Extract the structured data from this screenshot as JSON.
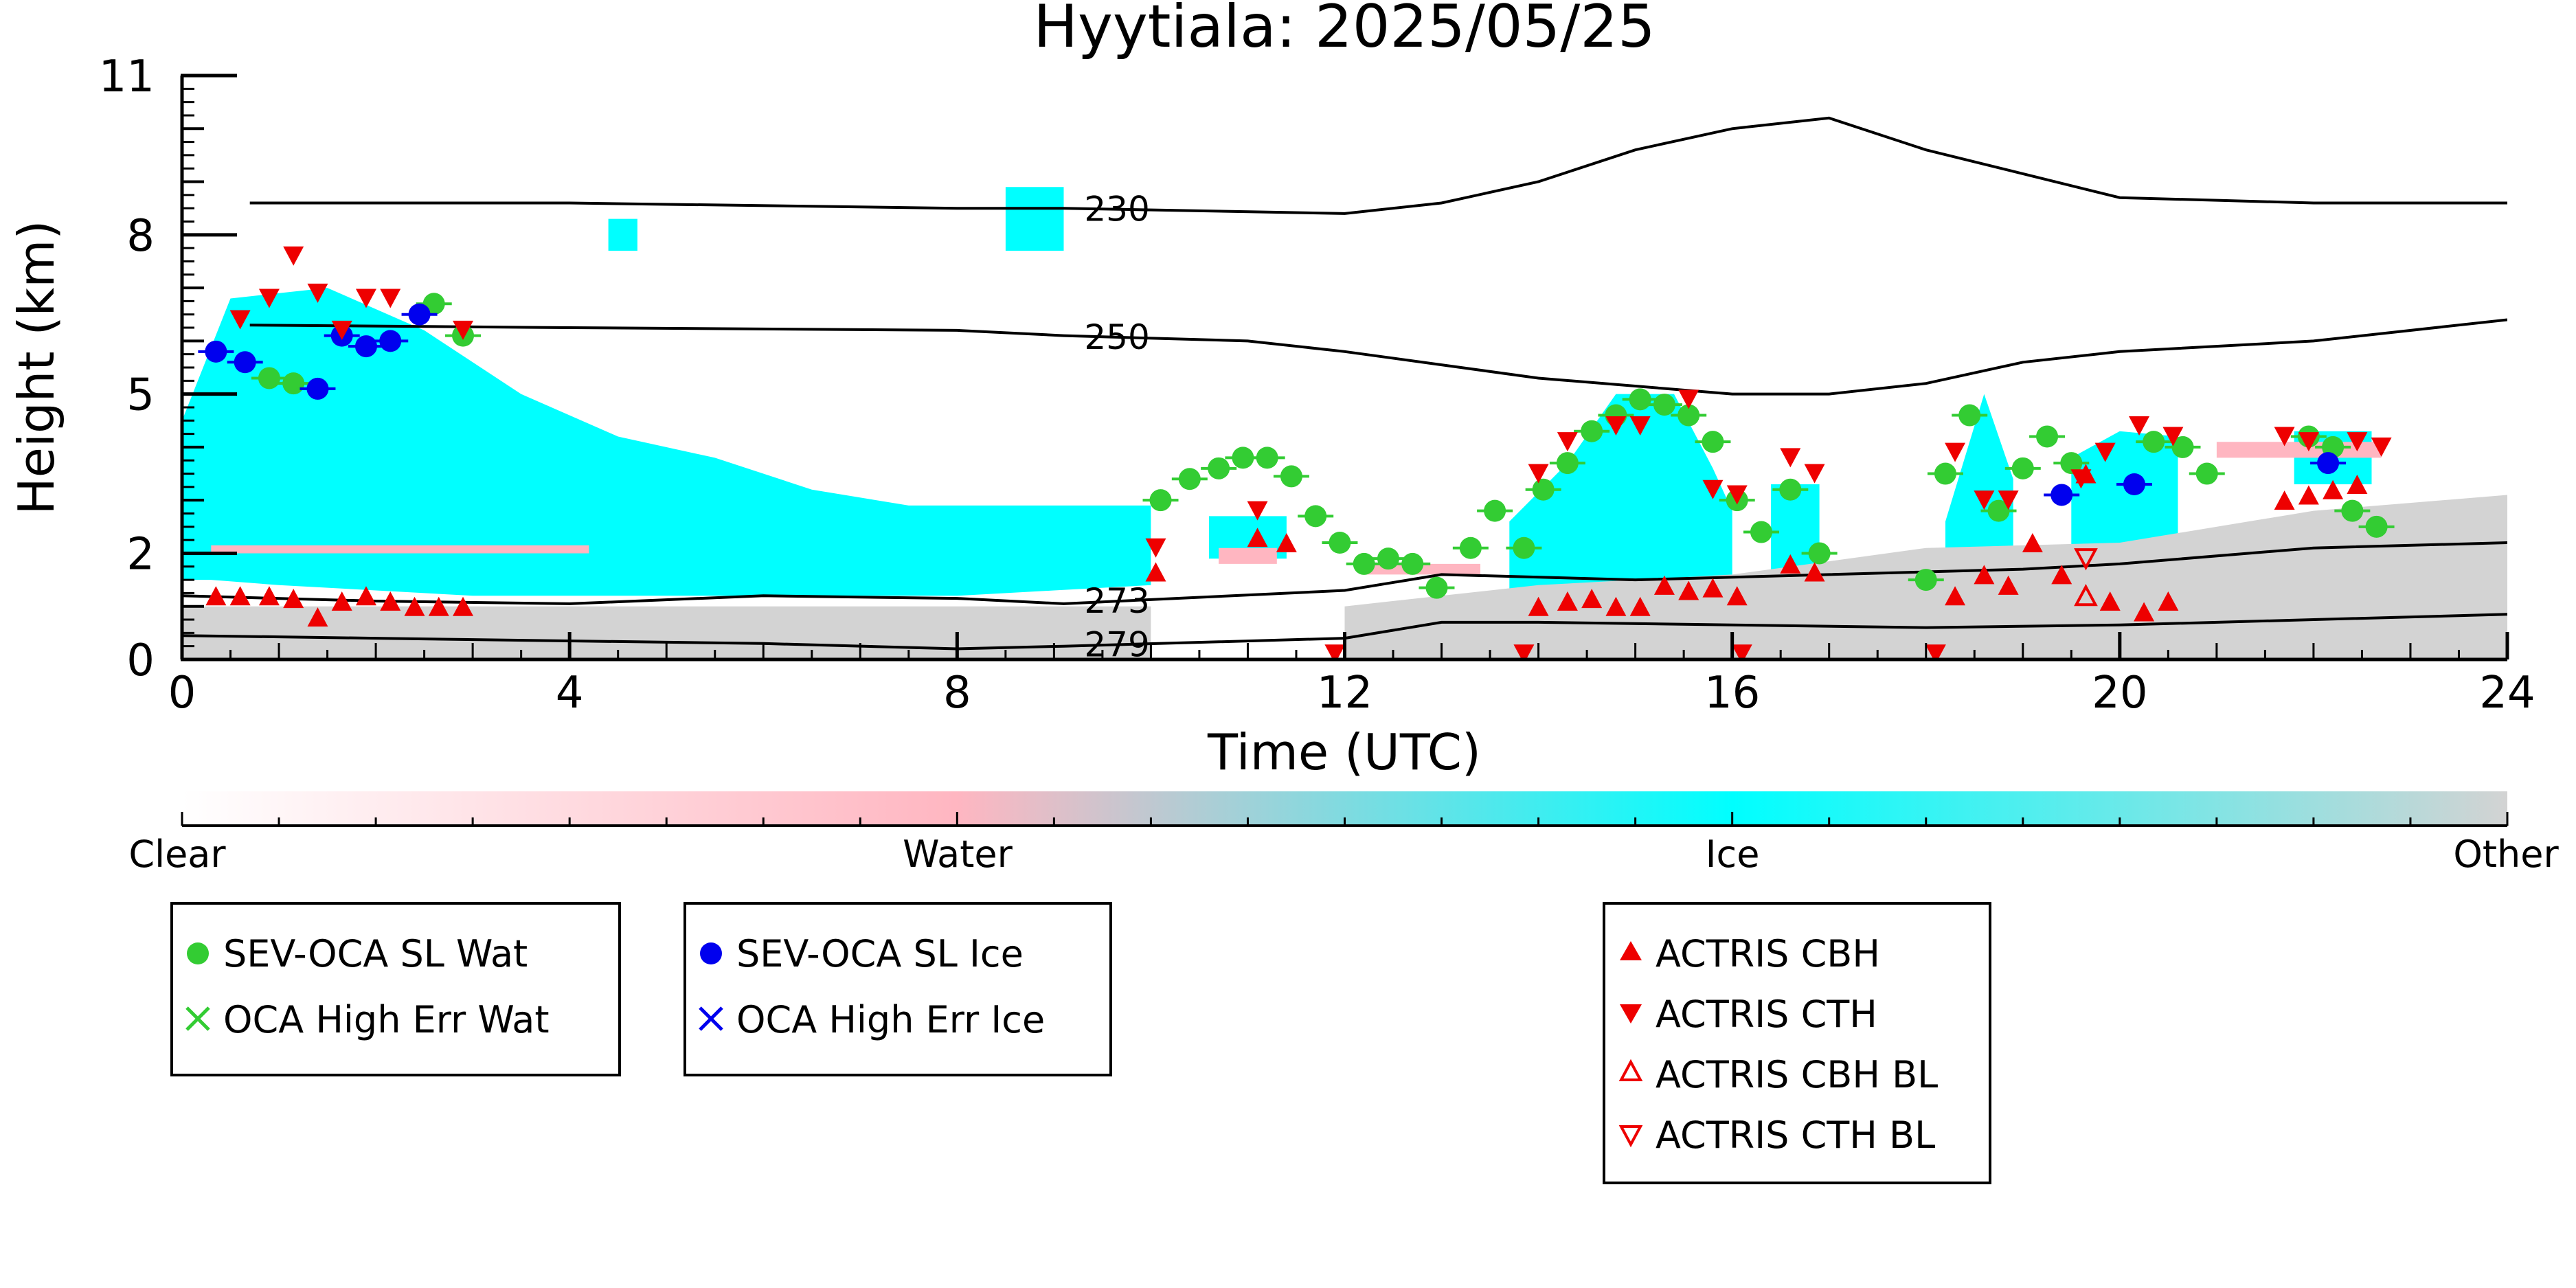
{
  "chart_data": {
    "type": "scatter",
    "title": "Hyytiala: 2025/05/25",
    "xlabel": "Time (UTC)",
    "ylabel": "Height (km)",
    "xlim": [
      0,
      24
    ],
    "ylim": [
      0,
      11
    ],
    "x_ticks": [
      0,
      4,
      8,
      12,
      16,
      20,
      24
    ],
    "y_ticks": [
      {
        "value": 0,
        "label": "0"
      },
      {
        "value": 2,
        "label": "2"
      },
      {
        "value": 5,
        "label": "5"
      },
      {
        "value": 8,
        "label": "8"
      },
      {
        "value": 11,
        "label": "11"
      }
    ],
    "colors": {
      "water": "#ffb6c1",
      "ice": "#00ffff",
      "other": "#d3d3d3",
      "green": "#33cc33",
      "blue": "#0000ee",
      "red": "#ee0000",
      "contour": "#000000"
    },
    "classification_regions": [
      {
        "class": "Ice",
        "x": [
          0.0,
          0.5,
          1.5,
          2.5,
          3.5,
          4.5,
          5.5,
          6.5,
          7.5,
          8.5,
          9.5,
          10.0,
          10.0,
          9.0,
          8.0,
          7.0,
          6.0,
          5.0,
          4.0,
          3.0,
          2.0,
          1.0,
          0.3,
          0.0
        ],
        "y": [
          4.5,
          6.8,
          7.0,
          6.2,
          5.0,
          4.2,
          3.8,
          3.2,
          2.9,
          2.9,
          2.9,
          2.9,
          1.4,
          1.3,
          1.2,
          1.2,
          1.2,
          1.2,
          1.2,
          1.2,
          1.3,
          1.4,
          1.5,
          1.5
        ]
      },
      {
        "class": "Ice",
        "x": [
          10.6,
          11.4,
          11.4,
          10.6
        ],
        "y": [
          2.7,
          2.7,
          1.9,
          1.9
        ]
      },
      {
        "class": "Ice",
        "x": [
          13.7,
          14.3,
          14.8,
          15.4,
          15.8,
          16.0,
          16.0,
          15.0,
          14.0,
          13.7
        ],
        "y": [
          2.6,
          3.7,
          5.0,
          5.0,
          3.6,
          2.8,
          1.1,
          0.8,
          0.8,
          1.2
        ]
      },
      {
        "class": "Ice",
        "x": [
          16.4,
          16.9,
          16.9,
          16.4
        ],
        "y": [
          3.3,
          3.3,
          1.5,
          1.5
        ]
      },
      {
        "class": "Ice",
        "x": [
          18.2,
          18.6,
          18.9,
          18.9,
          18.2
        ],
        "y": [
          2.6,
          5.0,
          3.4,
          1.4,
          1.4
        ]
      },
      {
        "class": "Ice",
        "x": [
          19.5,
          20.0,
          20.6,
          20.6,
          19.5
        ],
        "y": [
          3.8,
          4.3,
          4.2,
          1.1,
          1.1
        ]
      },
      {
        "class": "Ice",
        "x": [
          21.8,
          22.6,
          22.6,
          21.8
        ],
        "y": [
          4.3,
          4.3,
          3.3,
          3.3
        ]
      },
      {
        "class": "Ice",
        "x": [
          4.4,
          4.7,
          4.7,
          4.4
        ],
        "y": [
          8.3,
          8.3,
          7.7,
          7.7
        ]
      },
      {
        "class": "Ice",
        "x": [
          8.5,
          9.1,
          9.1,
          8.5
        ],
        "y": [
          8.9,
          8.9,
          7.7,
          7.7
        ]
      },
      {
        "class": "Other",
        "x": [
          0.0,
          10.0,
          10.0,
          0.0
        ],
        "y": [
          1.0,
          1.0,
          0.0,
          0.0
        ]
      },
      {
        "class": "Other",
        "x": [
          12.0,
          24.0,
          24.0,
          22.0,
          20.0,
          18.0,
          16.0,
          14.0,
          12.0
        ],
        "y": [
          0.0,
          0.0,
          3.1,
          2.8,
          2.2,
          2.1,
          1.6,
          1.4,
          1.0
        ]
      },
      {
        "class": "Water",
        "x": [
          0.3,
          4.2,
          4.2,
          0.3
        ],
        "y": [
          2.15,
          2.15,
          2.0,
          2.0
        ]
      },
      {
        "class": "Water",
        "x": [
          10.7,
          11.3,
          11.3,
          10.7
        ],
        "y": [
          2.1,
          2.1,
          1.8,
          1.8
        ]
      },
      {
        "class": "Water",
        "x": [
          12.2,
          13.4,
          13.4,
          12.2
        ],
        "y": [
          1.8,
          1.8,
          1.6,
          1.6
        ]
      },
      {
        "class": "Water",
        "x": [
          21.0,
          22.7,
          22.7,
          21.0
        ],
        "y": [
          4.1,
          4.1,
          3.8,
          3.8
        ]
      }
    ],
    "isotherms": [
      {
        "label": "230",
        "label_x": 9.65,
        "x": [
          0.7,
          4,
          8,
          9.1,
          12,
          13,
          14,
          15,
          16,
          17,
          18,
          20,
          22,
          24
        ],
        "y": [
          8.6,
          8.6,
          8.5,
          8.5,
          8.4,
          8.6,
          9.0,
          9.6,
          10.0,
          10.2,
          9.6,
          8.7,
          8.6,
          8.6
        ]
      },
      {
        "label": "250",
        "label_x": 9.65,
        "x": [
          0.7,
          4,
          8,
          9.1,
          11,
          12,
          14,
          16,
          17,
          18,
          19,
          20,
          22,
          24
        ],
        "y": [
          6.3,
          6.25,
          6.2,
          6.1,
          6.0,
          5.8,
          5.3,
          5.0,
          5.0,
          5.2,
          5.6,
          5.8,
          6.0,
          6.4
        ]
      },
      {
        "label": "273",
        "label_x": 9.65,
        "x": [
          0,
          2,
          4,
          6,
          8,
          9.1,
          12,
          13,
          15,
          17,
          19,
          20,
          22,
          24
        ],
        "y": [
          1.2,
          1.1,
          1.05,
          1.2,
          1.15,
          1.05,
          1.3,
          1.6,
          1.5,
          1.6,
          1.7,
          1.8,
          2.1,
          2.2
        ]
      },
      {
        "label": "279",
        "label_x": 9.65,
        "x": [
          0,
          2,
          4,
          6,
          8,
          9.1,
          12,
          13,
          14,
          16,
          18,
          20,
          22,
          24
        ],
        "y": [
          0.45,
          0.4,
          0.35,
          0.3,
          0.2,
          0.25,
          0.4,
          0.7,
          0.7,
          0.65,
          0.6,
          0.65,
          0.75,
          0.85
        ]
      }
    ],
    "series": [
      {
        "name": "SEV-OCA SL Wat",
        "marker": "circle",
        "color": "#33cc33",
        "points": [
          [
            0.9,
            5.3
          ],
          [
            1.15,
            5.2
          ],
          [
            2.6,
            6.7
          ],
          [
            2.9,
            6.1
          ],
          [
            10.1,
            3.0
          ],
          [
            10.4,
            3.4
          ],
          [
            10.7,
            3.6
          ],
          [
            10.95,
            3.8
          ],
          [
            11.2,
            3.8
          ],
          [
            11.45,
            3.45
          ],
          [
            11.7,
            2.7
          ],
          [
            11.95,
            2.2
          ],
          [
            12.2,
            1.8
          ],
          [
            12.45,
            1.9
          ],
          [
            12.7,
            1.8
          ],
          [
            12.95,
            1.35
          ],
          [
            13.3,
            2.1
          ],
          [
            13.55,
            2.8
          ],
          [
            13.85,
            2.1
          ],
          [
            14.05,
            3.2
          ],
          [
            14.3,
            3.7
          ],
          [
            14.55,
            4.3
          ],
          [
            14.8,
            4.6
          ],
          [
            15.05,
            4.9
          ],
          [
            15.3,
            4.8
          ],
          [
            15.55,
            4.6
          ],
          [
            15.8,
            4.1
          ],
          [
            16.05,
            3.0
          ],
          [
            16.3,
            2.4
          ],
          [
            16.6,
            3.2
          ],
          [
            16.9,
            2.0
          ],
          [
            18.0,
            1.5
          ],
          [
            18.2,
            3.5
          ],
          [
            18.45,
            4.6
          ],
          [
            18.75,
            2.8
          ],
          [
            19.0,
            3.6
          ],
          [
            19.25,
            4.2
          ],
          [
            19.5,
            3.7
          ],
          [
            20.35,
            4.1
          ],
          [
            20.65,
            4.0
          ],
          [
            20.9,
            3.5
          ],
          [
            21.95,
            4.2
          ],
          [
            22.2,
            4.0
          ],
          [
            22.4,
            2.8
          ],
          [
            22.65,
            2.5
          ]
        ]
      },
      {
        "name": "OCA High Err Wat",
        "marker": "x",
        "color": "#33cc33",
        "points": []
      },
      {
        "name": "SEV-OCA SL Ice",
        "marker": "circle",
        "color": "#0000ee",
        "points": [
          [
            0.35,
            5.8
          ],
          [
            0.65,
            5.6
          ],
          [
            1.4,
            5.1
          ],
          [
            1.65,
            6.1
          ],
          [
            1.9,
            5.9
          ],
          [
            2.15,
            6.0
          ],
          [
            2.45,
            6.5
          ],
          [
            19.4,
            3.1
          ],
          [
            20.15,
            3.3
          ],
          [
            22.15,
            3.7
          ]
        ]
      },
      {
        "name": "OCA High Err Ice",
        "marker": "x",
        "color": "#0000ee",
        "points": []
      },
      {
        "name": "ACTRIS CBH",
        "marker": "triangle-up",
        "color": "#ee0000",
        "points": [
          [
            0.35,
            1.2
          ],
          [
            0.6,
            1.2
          ],
          [
            0.9,
            1.2
          ],
          [
            1.15,
            1.15
          ],
          [
            1.4,
            0.8
          ],
          [
            1.65,
            1.1
          ],
          [
            1.9,
            1.2
          ],
          [
            2.15,
            1.1
          ],
          [
            2.4,
            1.0
          ],
          [
            2.65,
            1.0
          ],
          [
            2.9,
            1.0
          ],
          [
            10.05,
            1.65
          ],
          [
            11.1,
            2.3
          ],
          [
            11.4,
            2.2
          ],
          [
            14.0,
            1.0
          ],
          [
            14.3,
            1.1
          ],
          [
            14.55,
            1.15
          ],
          [
            14.8,
            1.0
          ],
          [
            15.05,
            1.0
          ],
          [
            15.3,
            1.4
          ],
          [
            15.55,
            1.3
          ],
          [
            15.8,
            1.35
          ],
          [
            16.05,
            1.2
          ],
          [
            16.6,
            1.8
          ],
          [
            16.85,
            1.65
          ],
          [
            18.3,
            1.2
          ],
          [
            18.6,
            1.6
          ],
          [
            18.85,
            1.4
          ],
          [
            19.1,
            2.2
          ],
          [
            19.4,
            1.6
          ],
          [
            19.65,
            3.5
          ],
          [
            19.9,
            1.1
          ],
          [
            20.25,
            0.9
          ],
          [
            20.5,
            1.1
          ],
          [
            21.7,
            3.0
          ],
          [
            21.95,
            3.1
          ],
          [
            22.2,
            3.2
          ],
          [
            22.45,
            3.3
          ]
        ]
      },
      {
        "name": "ACTRIS CTH",
        "marker": "triangle-down",
        "color": "#ee0000",
        "points": [
          [
            0.6,
            6.4
          ],
          [
            0.9,
            6.8
          ],
          [
            1.15,
            7.6
          ],
          [
            1.4,
            6.9
          ],
          [
            1.65,
            6.2
          ],
          [
            1.9,
            6.8
          ],
          [
            2.15,
            6.8
          ],
          [
            2.9,
            6.2
          ],
          [
            10.05,
            2.1
          ],
          [
            11.1,
            2.8
          ],
          [
            11.9,
            0.1
          ],
          [
            13.85,
            0.1
          ],
          [
            14.0,
            3.5
          ],
          [
            14.3,
            4.1
          ],
          [
            14.8,
            4.4
          ],
          [
            15.05,
            4.4
          ],
          [
            15.55,
            4.9
          ],
          [
            15.8,
            3.2
          ],
          [
            16.05,
            3.1
          ],
          [
            16.1,
            0.1
          ],
          [
            16.6,
            3.8
          ],
          [
            16.85,
            3.5
          ],
          [
            18.1,
            0.1
          ],
          [
            18.3,
            3.9
          ],
          [
            18.6,
            3.0
          ],
          [
            18.85,
            3.0
          ],
          [
            19.6,
            3.4
          ],
          [
            19.85,
            3.9
          ],
          [
            20.2,
            4.4
          ],
          [
            20.55,
            4.2
          ],
          [
            21.7,
            4.2
          ],
          [
            21.95,
            4.1
          ],
          [
            22.45,
            4.1
          ],
          [
            22.7,
            4.0
          ]
        ]
      },
      {
        "name": "ACTRIS CBH BL",
        "marker": "triangle-up-open",
        "color": "#ee0000",
        "points": [
          [
            19.65,
            1.2
          ]
        ]
      },
      {
        "name": "ACTRIS CTH BL",
        "marker": "triangle-down-open",
        "color": "#ee0000",
        "points": [
          [
            19.65,
            1.9
          ]
        ]
      }
    ],
    "colorbar": {
      "labels": [
        "Clear",
        "Water",
        "Ice",
        "Other"
      ],
      "stops": [
        "#ffffff",
        "#ffb6c1",
        "#00ffff",
        "#d3d3d3"
      ]
    },
    "legends": [
      {
        "entries": [
          "SEV-OCA SL Wat",
          "OCA High Err Wat"
        ]
      },
      {
        "entries": [
          "SEV-OCA SL Ice",
          "OCA High Err Ice"
        ]
      },
      {
        "entries": [
          "ACTRIS CBH",
          "ACTRIS CTH",
          "ACTRIS CBH BL",
          "ACTRIS CTH BL"
        ]
      }
    ]
  }
}
